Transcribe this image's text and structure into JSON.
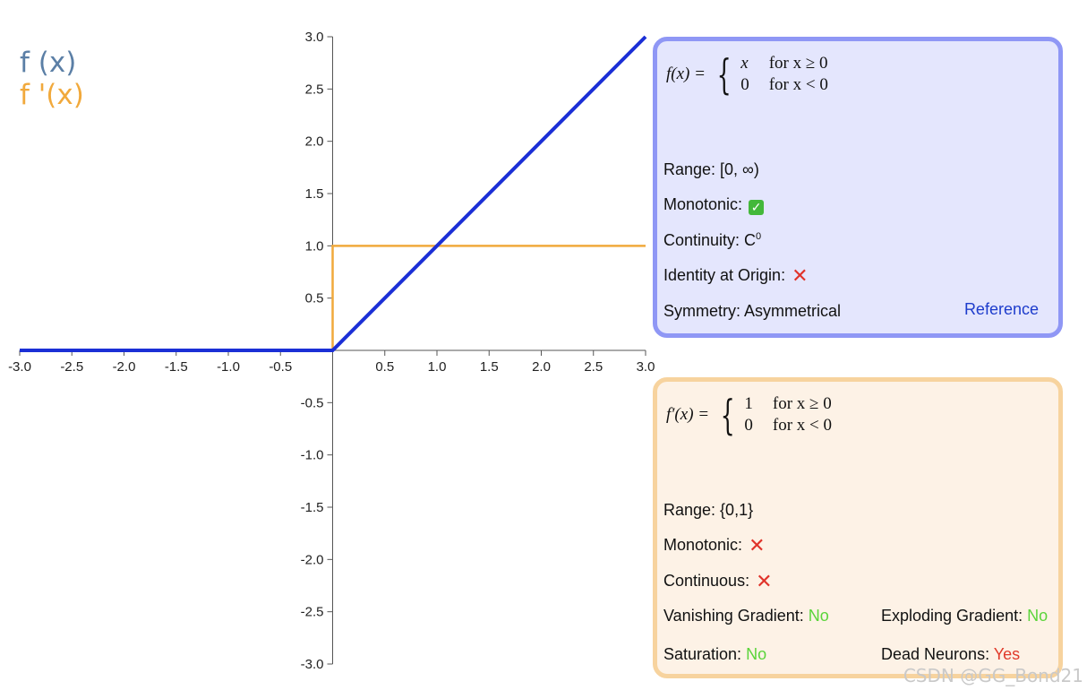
{
  "legend": {
    "f": "f (x)",
    "fp": "f '(x)"
  },
  "colors": {
    "f": "#1b2fd6",
    "fp": "#f1a93c",
    "legend_f": "#5b7fa6",
    "legend_fp": "#f1a93c",
    "axis": "#555555"
  },
  "chart_data": {
    "type": "line",
    "xlim": [
      -3.0,
      3.0
    ],
    "ylim": [
      -3.0,
      3.0
    ],
    "x_ticks": [
      "-3.0",
      "-2.5",
      "-2.0",
      "-1.5",
      "-1.0",
      "-0.5",
      "0.5",
      "1.0",
      "1.5",
      "2.0",
      "2.5",
      "3.0"
    ],
    "y_ticks": [
      "3.0",
      "2.5",
      "2.0",
      "1.5",
      "1.0",
      "0.5",
      "-0.5",
      "-1.0",
      "-1.5",
      "-2.0",
      "-2.5",
      "-3.0"
    ],
    "grid": false,
    "series": [
      {
        "name": "f (x)",
        "x": [
          -3.0,
          0.0,
          3.0
        ],
        "y": [
          0.0,
          0.0,
          3.0
        ]
      },
      {
        "name": "f '(x)",
        "x": [
          -3.0,
          0.0,
          0.0,
          3.0
        ],
        "y": [
          0.0,
          0.0,
          1.0,
          1.0
        ]
      }
    ]
  },
  "panel_f": {
    "formula": {
      "lhs": "f(x) =",
      "case1_val": "x",
      "case1_cond": "for x ≥ 0",
      "case2_val": "0",
      "case2_cond": "for x < 0"
    },
    "range": "Range: [0, ∞)",
    "monotonic": "Monotonic:",
    "monotonic_icon": "check-mark",
    "continuity_label": "Continuity: C",
    "continuity_sup": "0",
    "identity": "Identity at Origin:",
    "identity_icon": "cross-mark",
    "symmetry": "Symmetry: Asymmetrical",
    "reference": "Reference"
  },
  "panel_fp": {
    "formula": {
      "lhs": "f′(x) =",
      "case1_val": "1",
      "case1_cond": "for x ≥ 0",
      "case2_val": "0",
      "case2_cond": "for x < 0"
    },
    "range": "Range: {0,1}",
    "monotonic": "Monotonic:",
    "monotonic_icon": "cross-mark",
    "continuous": "Continuous:",
    "continuous_icon": "cross-mark",
    "vanishing_label": "Vanishing Gradient:",
    "vanishing_value": "No",
    "exploding_label": "Exploding Gradient:",
    "exploding_value": "No",
    "saturation_label": "Saturation:",
    "saturation_value": "No",
    "dead_label": "Dead Neurons:",
    "dead_value": "Yes"
  },
  "watermark": "CSDN @GG_Bond21"
}
